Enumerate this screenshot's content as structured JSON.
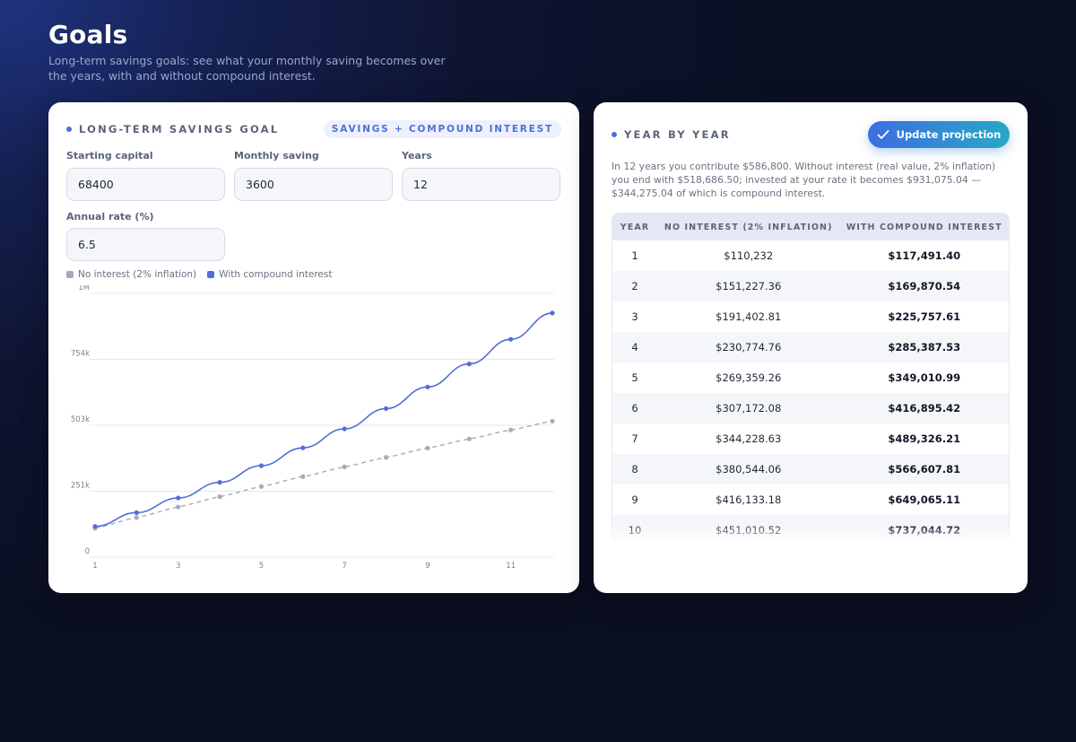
{
  "page": {
    "title": "Goals",
    "subtitle": "Long-term savings goals: see what your monthly saving becomes over the years, with and without compound interest."
  },
  "goal_panel": {
    "title": "LONG-TERM SAVINGS GOAL",
    "badge": "SAVINGS + COMPOUND INTEREST",
    "fields": {
      "starting_capital": {
        "label": "Starting capital",
        "value": "68400"
      },
      "monthly_saving": {
        "label": "Monthly saving",
        "value": "3600"
      },
      "years": {
        "label": "Years",
        "value": "12"
      },
      "annual_rate": {
        "label": "Annual rate (%)",
        "value": "6.5"
      }
    },
    "legend": {
      "no_interest": "No interest (2% inflation)",
      "with_interest": "With compound interest"
    }
  },
  "chart_data": {
    "type": "line",
    "x": [
      1,
      2,
      3,
      4,
      5,
      6,
      7,
      8,
      9,
      10,
      11,
      12
    ],
    "xticks": [
      "1",
      "3",
      "5",
      "7",
      "9",
      "11"
    ],
    "yticks": [
      "0",
      "251k",
      "503k",
      "754k",
      "1M"
    ],
    "ylim": [
      0,
      1006000
    ],
    "series": [
      {
        "name": "No interest (2% inflation)",
        "color": "#a5abbd",
        "style": "dashed",
        "values": [
          110232,
          151227.36,
          191402.81,
          230774.76,
          269359.26,
          307172.08,
          344228.63,
          380544.06,
          416133.18,
          451010.52,
          485190,
          518686.5
        ]
      },
      {
        "name": "With compound interest",
        "color": "#4e6fd8",
        "style": "solid",
        "values": [
          117491.4,
          169870.54,
          225757.61,
          285387.53,
          349010.99,
          416895.42,
          489326.21,
          566607.81,
          649065.11,
          737044.72,
          830920,
          931075.04
        ]
      }
    ],
    "grid": true,
    "legend_position": "top-left"
  },
  "year_panel": {
    "title": "YEAR BY YEAR",
    "update_button": "Update projection",
    "summary": "In 12 years you contribute $586,800. Without interest (real value, 2% inflation) you end with $518,686.50; invested at your rate it becomes $931,075.04 — $344,275.04 of which is compound interest.",
    "table": {
      "headers": [
        "YEAR",
        "NO INTEREST (2% INFLATION)",
        "WITH COMPOUND INTEREST"
      ],
      "rows": [
        [
          "1",
          "$110,232",
          "$117,491.40"
        ],
        [
          "2",
          "$151,227.36",
          "$169,870.54"
        ],
        [
          "3",
          "$191,402.81",
          "$225,757.61"
        ],
        [
          "4",
          "$230,774.76",
          "$285,387.53"
        ],
        [
          "5",
          "$269,359.26",
          "$349,010.99"
        ],
        [
          "6",
          "$307,172.08",
          "$416,895.42"
        ],
        [
          "7",
          "$344,228.63",
          "$489,326.21"
        ],
        [
          "8",
          "$380,544.06",
          "$566,607.81"
        ],
        [
          "9",
          "$416,133.18",
          "$649,065.11"
        ],
        [
          "10",
          "$451,010.52",
          "$737,044.72"
        ]
      ]
    }
  },
  "icons": {
    "update_button_icon": "check-icon",
    "title_bullet": "dot-icon"
  }
}
